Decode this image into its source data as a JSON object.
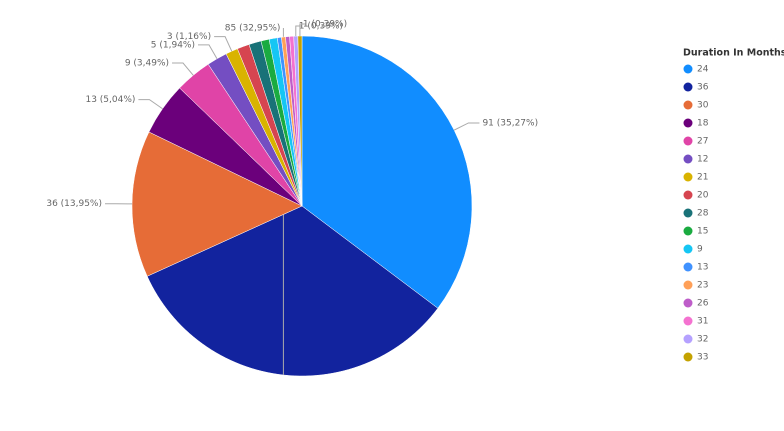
{
  "chart_data": {
    "type": "pie",
    "legend_title": "Duration In Months",
    "legend_position": "right",
    "categories": [
      "24",
      "36",
      "30",
      "18",
      "27",
      "12",
      "21",
      "20",
      "28",
      "15",
      "9",
      "13",
      "23",
      "26",
      "31",
      "32",
      "33"
    ],
    "values": [
      91,
      85,
      36,
      13,
      9,
      5,
      3,
      3,
      3,
      2,
      2,
      1,
      1,
      1,
      1,
      1,
      1
    ],
    "value_labels": [
      "91 (35,27%)",
      "85 (32,95%)",
      "36 (13,95%)",
      "13 (5,04%)",
      "9 (3,49%)",
      "5 (1,94%)",
      "3 (1,16%)",
      null,
      null,
      null,
      null,
      null,
      null,
      null,
      null,
      "1 (0,39%)",
      "1 (0,39%)"
    ],
    "colors": [
      "#118dff",
      "#12239e",
      "#e66c37",
      "#6b007b",
      "#e044a7",
      "#744ec2",
      "#d9b300",
      "#d64550",
      "#197278",
      "#1aab40",
      "#15c6f4",
      "#4092ff",
      "#ffa058",
      "#be5dc9",
      "#f472d0",
      "#b5a1ff",
      "#c4a200"
    ]
  }
}
